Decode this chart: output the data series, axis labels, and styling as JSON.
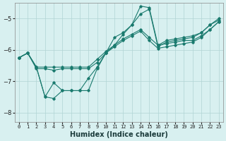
{
  "xlabel": "Humidex (Indice chaleur)",
  "bg_color": "#d8f0f0",
  "line_color": "#1a7a6e",
  "grid_color": "#b0d4d4",
  "xlim": [
    -0.5,
    23.5
  ],
  "ylim": [
    -8.3,
    -4.5
  ],
  "yticks": [
    -8,
    -7,
    -6,
    -5
  ],
  "xticks": [
    0,
    1,
    2,
    3,
    4,
    5,
    6,
    7,
    8,
    9,
    10,
    11,
    12,
    13,
    14,
    15,
    16,
    17,
    18,
    19,
    20,
    21,
    22,
    23
  ],
  "series": [
    {
      "x": [
        0,
        1,
        2,
        3,
        4,
        5,
        6,
        7,
        8,
        9,
        10,
        11,
        12,
        13,
        14,
        15,
        16,
        17,
        18,
        19,
        20,
        21,
        22,
        23
      ],
      "y": [
        -6.25,
        -6.1,
        -6.55,
        -6.55,
        -6.55,
        -6.55,
        -6.55,
        -6.55,
        -6.55,
        -6.3,
        -6.05,
        -5.85,
        -5.65,
        -5.5,
        -5.35,
        -5.6,
        -5.85,
        -5.8,
        -5.75,
        -5.7,
        -5.7,
        -5.55,
        -5.35,
        -5.1
      ]
    },
    {
      "x": [
        0,
        1,
        2,
        3,
        4,
        5,
        6,
        7,
        8,
        9,
        10,
        11,
        12,
        13,
        14,
        15,
        16,
        17,
        18,
        19,
        20,
        21,
        22,
        23
      ],
      "y": [
        -6.25,
        -6.1,
        -6.55,
        -7.5,
        -7.55,
        -7.3,
        -7.3,
        -7.3,
        -6.9,
        -6.55,
        -6.1,
        -5.85,
        -5.5,
        -5.2,
        -4.85,
        -4.7,
        -5.9,
        -5.75,
        -5.7,
        -5.65,
        -5.6,
        -5.45,
        -5.2,
        -5.05
      ]
    },
    {
      "x": [
        0,
        1,
        2,
        3,
        4,
        5,
        6,
        7,
        8,
        9,
        10,
        11,
        12,
        13,
        14,
        15,
        16,
        17,
        18,
        19,
        20,
        21,
        22,
        23
      ],
      "y": [
        -6.25,
        -6.1,
        -6.55,
        -7.5,
        -7.05,
        -7.3,
        -7.3,
        -7.3,
        -7.3,
        -6.6,
        -6.1,
        -5.6,
        -5.45,
        -5.2,
        -4.6,
        -4.65,
        -5.85,
        -5.7,
        -5.65,
        -5.6,
        -5.55,
        -5.45,
        -5.2,
        -5.0
      ]
    },
    {
      "x": [
        0,
        1,
        2,
        3,
        4,
        5,
        6,
        7,
        8,
        9,
        10,
        11,
        12,
        13,
        14,
        15,
        16,
        17,
        18,
        19,
        20,
        21,
        22,
        23
      ],
      "y": [
        -6.25,
        -6.1,
        -6.6,
        -6.6,
        -6.65,
        -6.6,
        -6.6,
        -6.6,
        -6.6,
        -6.4,
        -6.1,
        -5.9,
        -5.7,
        -5.55,
        -5.4,
        -5.7,
        -5.95,
        -5.9,
        -5.85,
        -5.8,
        -5.75,
        -5.6,
        -5.35,
        -5.1
      ]
    }
  ]
}
